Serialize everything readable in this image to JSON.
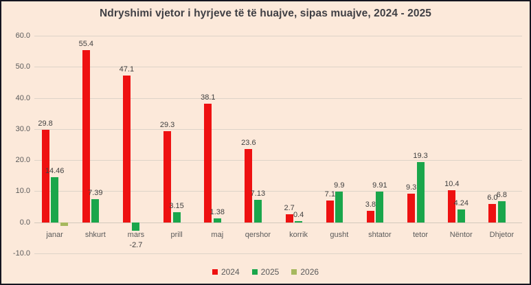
{
  "chart": {
    "title": "Ndryshimi vjetor i hyrjeve të të huajve, sipas muajve, 2024 - 2025"
  },
  "chart_data": {
    "type": "bar",
    "title": "Ndryshimi vjetor i hyrjeve të të huajve, sipas muajve, 2024 - 2025",
    "xlabel": "",
    "ylabel": "",
    "grid": true,
    "legend_position": "bottom",
    "categories": [
      "janar",
      "shkurt",
      "mars",
      "prill",
      "maj",
      "qershor",
      "korrik",
      "gusht",
      "shtator",
      "tetor",
      "Nëntor",
      "Dhjetor"
    ],
    "series": [
      {
        "name": "2024",
        "color": "#ee1111",
        "values": [
          29.8,
          55.4,
          47.1,
          29.3,
          38.1,
          23.6,
          2.7,
          7.1,
          3.8,
          9.3,
          10.4,
          6.0
        ],
        "labels": [
          "29.8",
          "55.4",
          "47.1",
          "29.3",
          "38.1",
          "23.6",
          "2.7",
          "7.1",
          "3.8",
          "9.3",
          "10.4",
          "6.0"
        ]
      },
      {
        "name": "2025",
        "color": "#1aa64b",
        "values": [
          14.46,
          7.39,
          -2.7,
          3.15,
          1.38,
          7.13,
          0.4,
          9.9,
          9.91,
          19.3,
          4.24,
          6.8
        ],
        "labels": [
          "14.46",
          "7.39",
          "-2.7",
          "3.15",
          "1.38",
          "7.13",
          "0.4",
          "9.9",
          "9.91",
          "19.3",
          "4.24",
          "6.8"
        ]
      },
      {
        "name": "2026",
        "color": "#a6b85e",
        "values": [
          -1.2,
          null,
          null,
          null,
          null,
          null,
          null,
          null,
          null,
          null,
          null,
          null
        ],
        "labels": [
          "",
          "",
          "",
          "",
          "",
          "",
          "",
          "",
          "",
          "",
          "",
          ""
        ]
      }
    ],
    "y_axis": {
      "min": -10,
      "max": 60,
      "tick_labels": [
        "60.0",
        "50.0",
        "40.0",
        "30.0",
        "20.0",
        "10.0",
        "0.0",
        "-10.0"
      ],
      "tick_values": [
        60,
        50,
        40,
        30,
        20,
        10,
        0,
        -10
      ]
    },
    "colors": {
      "background": "#fce9da",
      "frame_border": "#15151f",
      "gridline": "#ddd3c8",
      "axis_text": "#595959",
      "data_label_text": "#404040",
      "title_text": "#3f3f44"
    }
  }
}
